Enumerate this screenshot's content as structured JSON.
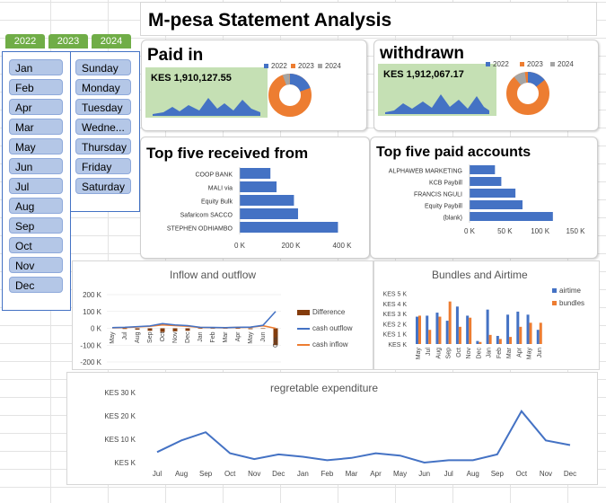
{
  "header": {
    "title": "M-pesa Statement Analysis"
  },
  "year_tabs": [
    "2022",
    "2023",
    "2024"
  ],
  "months": [
    "Jan",
    "Feb",
    "Apr",
    "Mar",
    "May",
    "Jun",
    "Jul",
    "Aug",
    "Sep",
    "Oct",
    "Nov",
    "Dec"
  ],
  "days": [
    "Sunday",
    "Monday",
    "Tuesday",
    "Wedne...",
    "Thursday",
    "Friday",
    "Saturday"
  ],
  "paid_in": {
    "title": "Paid in",
    "value": "KES 1,910,127.55",
    "legend": [
      "2022",
      "2023",
      "2024"
    ],
    "colors": [
      "#4472c4",
      "#ed7d31",
      "#a5a5a5"
    ]
  },
  "withdrawn": {
    "title": "withdrawn",
    "value": "KES 1,912,067.17",
    "legend": [
      "2022",
      "2023",
      "2024"
    ],
    "colors": [
      "#4472c4",
      "#ed7d31",
      "#a5a5a5"
    ]
  },
  "top_received": {
    "title": "Top five received from",
    "chart_data": {
      "type": "bar",
      "categories": [
        "COOP BANK",
        "MALI via",
        "Equity Bulk",
        "Safaricom SACCO",
        "STEPHEN ODHIAMBO"
      ],
      "values": [
        150000,
        180000,
        265000,
        285000,
        480000
      ],
      "ticks": [
        "0 K",
        "200 K",
        "400 K"
      ],
      "xlim": [
        0,
        500000
      ]
    }
  },
  "top_paid": {
    "title": "Top five  paid accounts",
    "chart_data": {
      "type": "bar",
      "categories": [
        "ALPHAWEB MARKETING",
        "KCB Paybill",
        "FRANCIS NGULI",
        "Equity Paybill",
        "(blank)"
      ],
      "values": [
        36000,
        45000,
        65000,
        75000,
        118000
      ],
      "ticks": [
        "0 K",
        "50 K",
        "100 K",
        "150 K"
      ],
      "xlim": [
        0,
        150000
      ]
    }
  },
  "inflow_outflow": {
    "title": "Inflow and outflow",
    "legend": [
      "Difference",
      "cash outflow",
      "cash inflow"
    ],
    "colors": [
      "#843c0c",
      "#4472c4",
      "#ed7d31"
    ],
    "chart_data": {
      "type": "line",
      "categories": [
        "May",
        "Jul",
        "Aug",
        "Sep",
        "Oct",
        "Nov",
        "Dec",
        "Jan",
        "Feb",
        "Mar",
        "Apr",
        "May",
        "Jun",
        "Gra..."
      ],
      "y_ticks": [
        "200 K",
        "100 K",
        "0 K",
        "-100 K",
        "-200 K"
      ],
      "ylim": [
        -200000,
        200000
      ],
      "series": [
        {
          "name": "Difference",
          "values": [
            0,
            -4000,
            -8000,
            -15000,
            -22000,
            -18000,
            -15000,
            -3000,
            -2000,
            -2000,
            -3000,
            -5000,
            -3000,
            -100000
          ]
        },
        {
          "name": "cash outflow",
          "values": [
            4000,
            6000,
            10000,
            14000,
            28000,
            20000,
            16000,
            6000,
            5000,
            4000,
            6000,
            7000,
            18000,
            100000
          ]
        },
        {
          "name": "cash inflow",
          "values": [
            3000,
            4000,
            8000,
            12000,
            20000,
            16000,
            12000,
            5000,
            4000,
            3000,
            5000,
            6000,
            15000,
            0
          ]
        }
      ]
    }
  },
  "bundles_airtime": {
    "title": "Bundles and Airtime",
    "legend": [
      "airtime",
      "bundles"
    ],
    "colors": [
      "#4472c4",
      "#ed7d31"
    ],
    "chart_data": {
      "type": "bar",
      "categories": [
        "May",
        "Jul",
        "Aug",
        "Sep",
        "Oct",
        "Nov",
        "Dec",
        "Jan",
        "Feb",
        "Mar",
        "Apr",
        "May",
        "Jun"
      ],
      "y_ticks": [
        "KES 5 K",
        "KES 4 K",
        "KES 3 K",
        "KES 2 K",
        "KES 1 K",
        "KES  K"
      ],
      "ylim": [
        0,
        5500
      ],
      "series": [
        {
          "name": "airtime",
          "values": [
            2700,
            2800,
            3100,
            2300,
            3700,
            2800,
            300,
            3400,
            800,
            2900,
            3200,
            2900,
            1400
          ]
        },
        {
          "name": "bundles",
          "values": [
            2800,
            1400,
            2700,
            4200,
            1700,
            2600,
            200,
            900,
            500,
            700,
            1700,
            2100,
            2100
          ]
        }
      ]
    }
  },
  "regretable": {
    "title": "regretable expenditure",
    "chart_data": {
      "type": "line",
      "categories": [
        "Jul",
        "Aug",
        "Sep",
        "Oct",
        "Nov",
        "Dec",
        "Jan",
        "Feb",
        "Mar",
        "Apr",
        "May",
        "Jun",
        "Jul",
        "Aug",
        "Sep",
        "Oct",
        "Nov",
        "Dec"
      ],
      "y_ticks": [
        "KES 30 K",
        "KES 20 K",
        "KES 10 K",
        "KES  K"
      ],
      "ylim": [
        0,
        30000
      ],
      "series": [
        {
          "name": "regretable expenditure",
          "values": [
            4500,
            9500,
            13000,
            4000,
            1500,
            3500,
            2500,
            1000,
            2000,
            4000,
            3000,
            0,
            1000,
            1000,
            3500,
            22000,
            9500,
            7500
          ]
        }
      ]
    }
  }
}
